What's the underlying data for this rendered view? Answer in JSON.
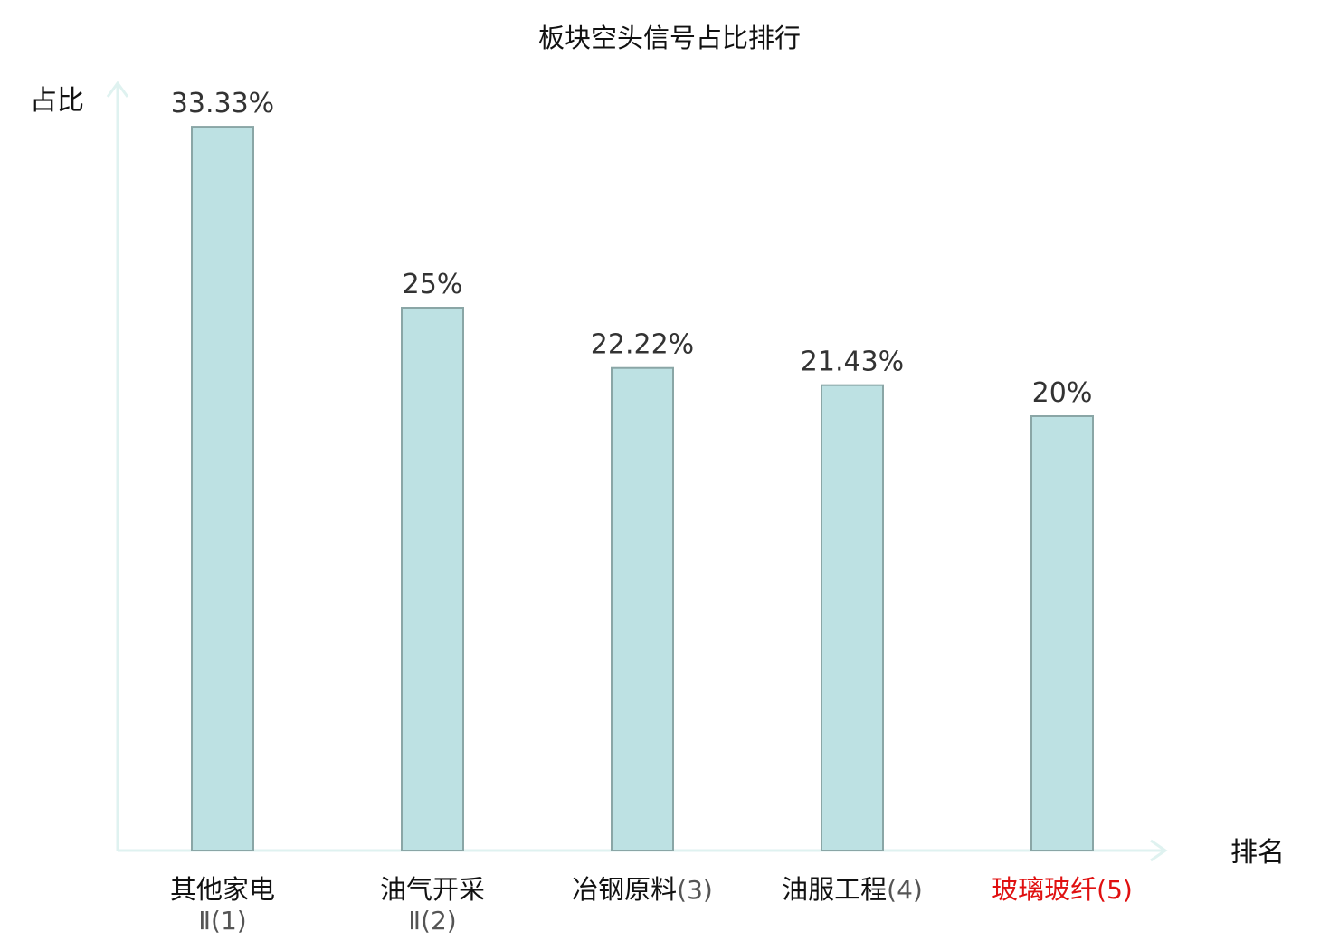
{
  "chart_data": {
    "type": "bar",
    "title": "板块空头信号占比排行",
    "ylabel": "占比",
    "xlabel": "排名",
    "ylim": [
      0,
      35
    ],
    "grid": false,
    "legend": "none",
    "categories": [
      {
        "name": "其他家电",
        "suffix": "Ⅱ(1)",
        "highlight": false
      },
      {
        "name": "油气开采",
        "suffix": "Ⅱ(2)",
        "highlight": false
      },
      {
        "name": "冶钢原料",
        "suffix": "(3)",
        "highlight": false
      },
      {
        "name": "油服工程",
        "suffix": "(4)",
        "highlight": false
      },
      {
        "name": "玻璃玻纤",
        "suffix": "(5)",
        "highlight": true
      }
    ],
    "values": [
      33.33,
      25,
      22.22,
      21.43,
      20
    ],
    "value_labels": [
      "33.33%",
      "25%",
      "22.22%",
      "21.43%",
      "20%"
    ]
  },
  "colors": {
    "bar_fill": "#bde1e3",
    "bar_stroke": "#8aa6a6",
    "axis": "#dff2f0",
    "text": "#111111",
    "value_text": "#333333",
    "suffix_text": "#555555",
    "highlight": "#e01010"
  }
}
